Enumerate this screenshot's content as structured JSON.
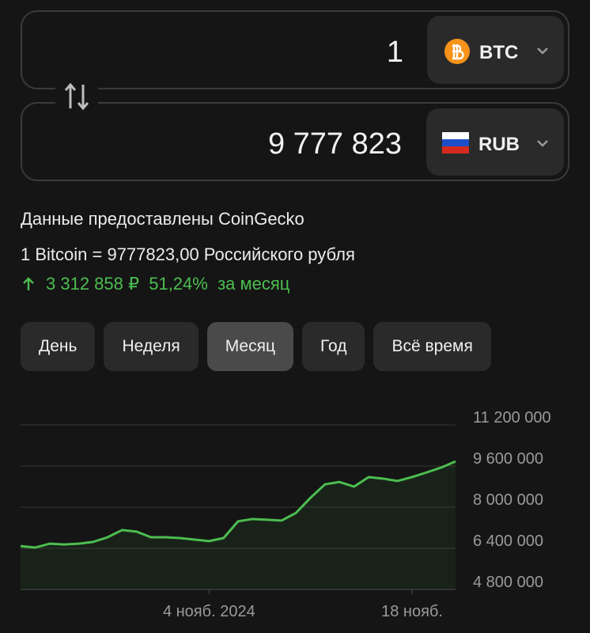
{
  "converter": {
    "from": {
      "amount": "1",
      "currency": "BTC"
    },
    "to": {
      "amount": "9 777 823",
      "currency": "RUB"
    }
  },
  "info": {
    "source": "Данные предоставлены CoinGecko",
    "rate": "1 Bitcoin = 9777823,00 Российского рубля",
    "change": {
      "amount": "3 312 858 ₽",
      "percent": "51,24%",
      "period": "за месяц"
    }
  },
  "periods": [
    "День",
    "Неделя",
    "Месяц",
    "Год",
    "Всё время"
  ],
  "active_period": 2,
  "chart_data": {
    "type": "line",
    "color": "#4cbd50",
    "x": [
      "2024-10-22",
      "2024-10-23",
      "2024-10-24",
      "2024-10-25",
      "2024-10-26",
      "2024-10-27",
      "2024-10-28",
      "2024-10-29",
      "2024-10-30",
      "2024-10-31",
      "2024-11-01",
      "2024-11-02",
      "2024-11-03",
      "2024-11-04",
      "2024-11-05",
      "2024-11-06",
      "2024-11-07",
      "2024-11-08",
      "2024-11-09",
      "2024-11-10",
      "2024-11-11",
      "2024-11-12",
      "2024-11-13",
      "2024-11-14",
      "2024-11-15",
      "2024-11-16",
      "2024-11-17",
      "2024-11-18",
      "2024-11-19",
      "2024-11-20",
      "2024-11-21"
    ],
    "values": [
      6490000,
      6430000,
      6580000,
      6550000,
      6580000,
      6650000,
      6830000,
      7110000,
      7050000,
      6830000,
      6830000,
      6800000,
      6740000,
      6680000,
      6800000,
      7450000,
      7540000,
      7510000,
      7480000,
      7780000,
      8370000,
      8890000,
      8980000,
      8800000,
      9170000,
      9110000,
      9020000,
      9170000,
      9350000,
      9540000,
      9780000
    ],
    "xlim": [
      "2024-10-22",
      "2024-11-21"
    ],
    "xticks": [
      {
        "value": "2024-11-04",
        "label": "4 нояб. 2024"
      },
      {
        "value": "2024-11-18",
        "label": "18 нояб."
      }
    ],
    "ylim": [
      4800000,
      11200000
    ],
    "yticks": [
      {
        "value": 4800000,
        "label": "4 800 000"
      },
      {
        "value": 6400000,
        "label": "6 400 000"
      },
      {
        "value": 8000000,
        "label": "8 000 000"
      },
      {
        "value": 9600000,
        "label": "9 600 000"
      },
      {
        "value": 11200000,
        "label": "11 200 000"
      }
    ],
    "grid": true
  }
}
